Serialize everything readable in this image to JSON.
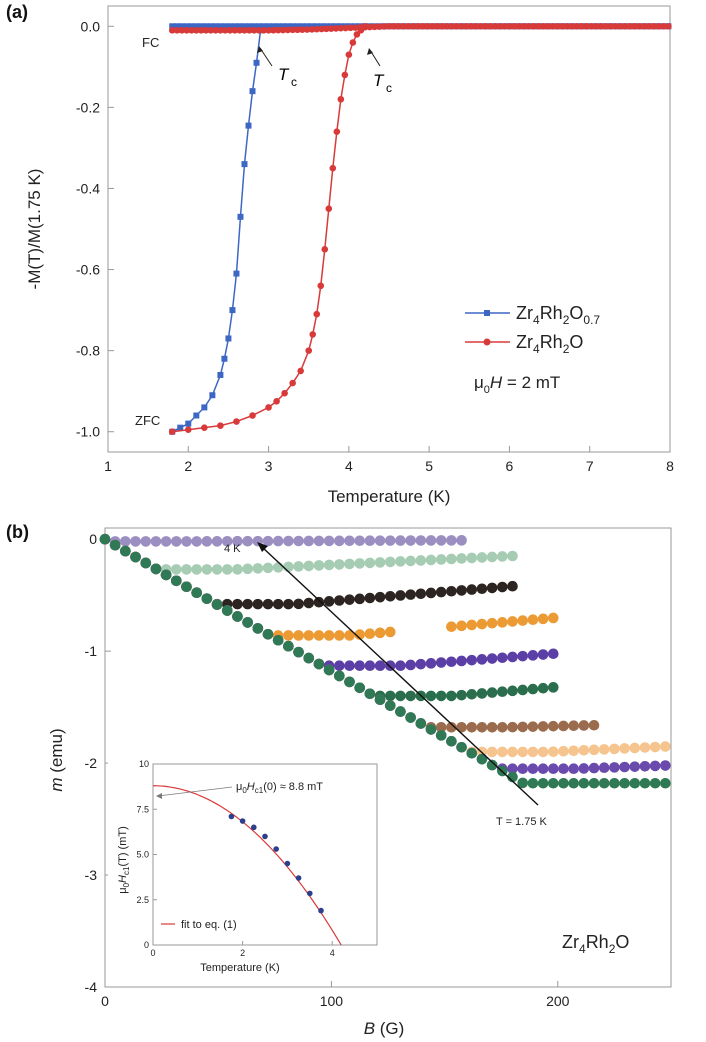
{
  "chart_data": [
    {
      "panel": "(a)",
      "type": "line",
      "xlabel": "Temperature (K)",
      "ylabel": "-M(T)/M(1.75 K)",
      "xlim": [
        1,
        8
      ],
      "ylim": [
        -1.05,
        0.05
      ],
      "xticks": [
        1,
        2,
        3,
        4,
        5,
        6,
        7,
        8
      ],
      "yticks": [
        0.0,
        -0.2,
        -0.4,
        -0.6,
        -0.8,
        -1.0
      ],
      "ytick_labels": [
        "0.0",
        "-0.2",
        "-0.4",
        "-0.6",
        "-0.8",
        "-1.0"
      ],
      "annotations": {
        "fc": "FC",
        "zfc": "ZFC",
        "tc_main": "T",
        "tc_sub": "c",
        "field_mu": "μ",
        "field_sub": "0",
        "field_H": "H",
        "field_rest": " = 2 mT"
      },
      "legend": [
        {
          "base": "Zr",
          "s1": "4",
          "mid": "Rh",
          "s2": "2",
          "mid2": "O",
          "s3": "0.7"
        },
        {
          "base": "Zr",
          "s1": "4",
          "mid": "Rh",
          "s2": "2",
          "mid2": "O",
          "s3": ""
        }
      ],
      "legend_position": "right",
      "grid": false,
      "series": [
        {
          "name": "Zr4Rh2O0.7",
          "color": "#3d67c4",
          "marker": "square",
          "zfc_x": [
            1.8,
            1.9,
            2.0,
            2.1,
            2.2,
            2.3,
            2.4,
            2.45,
            2.5,
            2.55,
            2.6,
            2.65,
            2.7,
            2.75,
            2.8,
            2.85,
            2.9
          ],
          "zfc_y": [
            -1.0,
            -0.99,
            -0.98,
            -0.96,
            -0.94,
            -0.91,
            -0.86,
            -0.82,
            -0.77,
            -0.7,
            -0.61,
            -0.47,
            -0.34,
            -0.245,
            -0.16,
            -0.09,
            -0.01
          ],
          "fc_x": [
            1.8,
            2.0,
            2.5,
            3.0,
            3.5,
            4.0,
            4.5,
            5.0,
            5.5,
            6.0,
            6.5,
            7.0,
            7.5,
            8.0
          ],
          "fc_y": [
            0.0,
            0.0,
            0.0,
            0.0,
            0.0,
            0.0,
            0.0,
            0.0,
            0.0,
            0.0,
            0.0,
            0.0,
            0.0,
            0.0
          ]
        },
        {
          "name": "Zr4Rh2O",
          "color": "#d83a3a",
          "marker": "circle",
          "zfc_x": [
            1.8,
            2.0,
            2.2,
            2.4,
            2.6,
            2.8,
            3.0,
            3.1,
            3.2,
            3.3,
            3.4,
            3.5,
            3.55,
            3.6,
            3.65,
            3.7,
            3.75,
            3.8,
            3.85,
            3.9,
            3.95,
            4.0,
            4.05,
            4.1,
            4.15,
            4.2
          ],
          "zfc_y": [
            -1.0,
            -0.995,
            -0.99,
            -0.985,
            -0.975,
            -0.96,
            -0.94,
            -0.925,
            -0.905,
            -0.88,
            -0.85,
            -0.8,
            -0.76,
            -0.71,
            -0.64,
            -0.55,
            -0.45,
            -0.35,
            -0.26,
            -0.18,
            -0.12,
            -0.07,
            -0.04,
            -0.02,
            -0.01,
            0.0
          ],
          "fc_x": [
            1.8,
            2.0,
            2.5,
            3.0,
            3.5,
            4.0,
            4.5,
            5.0,
            5.5,
            6.0,
            6.5,
            7.0,
            7.5,
            8.0
          ],
          "fc_y": [
            -0.01,
            -0.01,
            -0.01,
            -0.01,
            -0.008,
            -0.004,
            0.0,
            0.0,
            0.0,
            0.0,
            0.0,
            0.0,
            0.0,
            0.0
          ]
        }
      ]
    },
    {
      "panel": "(b)",
      "type": "scatter",
      "xlabel_var": "B",
      "xlabel_unit": " (G)",
      "ylabel_var": "m",
      "ylabel_unit": " (emu)",
      "xlim": [
        0,
        250
      ],
      "ylim": [
        -4,
        0.1
      ],
      "xticks": [
        0,
        100,
        200
      ],
      "yticks": [
        0,
        -1,
        -2,
        -3,
        -4
      ],
      "arrow_top_label": "4 K",
      "arrow_bottom_label": "T = 1.75 K",
      "compound": {
        "base": "Zr",
        "s1": "4",
        "mid": "Rh",
        "s2": "2",
        "mid2": "O"
      },
      "series": [
        {
          "color": "#9b8fc2",
          "min_y": -0.02,
          "end_x": 160,
          "end_y": -0.01
        },
        {
          "color": "#a6ccb4",
          "min_y": -0.27,
          "end_x": 180,
          "end_y": -0.15
        },
        {
          "color": "#2b2421",
          "min_y": -0.58,
          "end_x": 180,
          "end_y": -0.42
        },
        {
          "color": "#ec9a33",
          "min_y": -0.86,
          "end_x": 200,
          "end_y": -0.7,
          "gap": [
            128,
            150
          ]
        },
        {
          "color": "#5b3fa6",
          "min_y": -1.13,
          "end_x": 200,
          "end_y": -1.02
        },
        {
          "color": "#2a6e4e",
          "min_y": -1.4,
          "end_x": 200,
          "end_y": -1.32
        },
        {
          "color": "#9a6b4c",
          "min_y": -1.68,
          "end_x": 220,
          "end_y": -1.66
        },
        {
          "color": "#f6c48e",
          "min_y": -1.9,
          "end_x": 250,
          "end_y": -1.85
        },
        {
          "color": "#6a4aad",
          "min_y": -2.05,
          "end_x": 250,
          "end_y": -2.02
        },
        {
          "color": "#2f7a55",
          "min_y": -2.18,
          "end_x": 250,
          "end_y": -2.18
        }
      ],
      "inset": {
        "xlabel": "Temperature (K)",
        "ylabel_mu": "μ",
        "ylabel_0": "0",
        "ylabel_H": "H",
        "ylabel_sub": "c1",
        "ylabel_rest": "(T) (mT)",
        "xlim": [
          0,
          5
        ],
        "ylim": [
          0,
          10
        ],
        "xticks": [
          0,
          2,
          4
        ],
        "yticks": [
          0,
          2.5,
          5.0,
          7.5,
          10
        ],
        "ytick_labels": [
          "0",
          "2.5",
          "5.0",
          "7.5",
          "10"
        ],
        "annotation_mu": "μ",
        "annotation_0": "0",
        "annotation_H": "H",
        "annotation_sub": "c1",
        "annotation_rest": "(0) ≈ 8.8 mT",
        "legend_label": "fit to eq. (1)",
        "points_x": [
          1.75,
          2.0,
          2.25,
          2.5,
          2.75,
          3.0,
          3.25,
          3.5,
          3.75
        ],
        "points_y": [
          7.1,
          6.85,
          6.5,
          6.0,
          5.3,
          4.5,
          3.7,
          2.85,
          1.9
        ],
        "fit_H0": 8.8,
        "fit_Tc": 4.2
      }
    }
  ]
}
